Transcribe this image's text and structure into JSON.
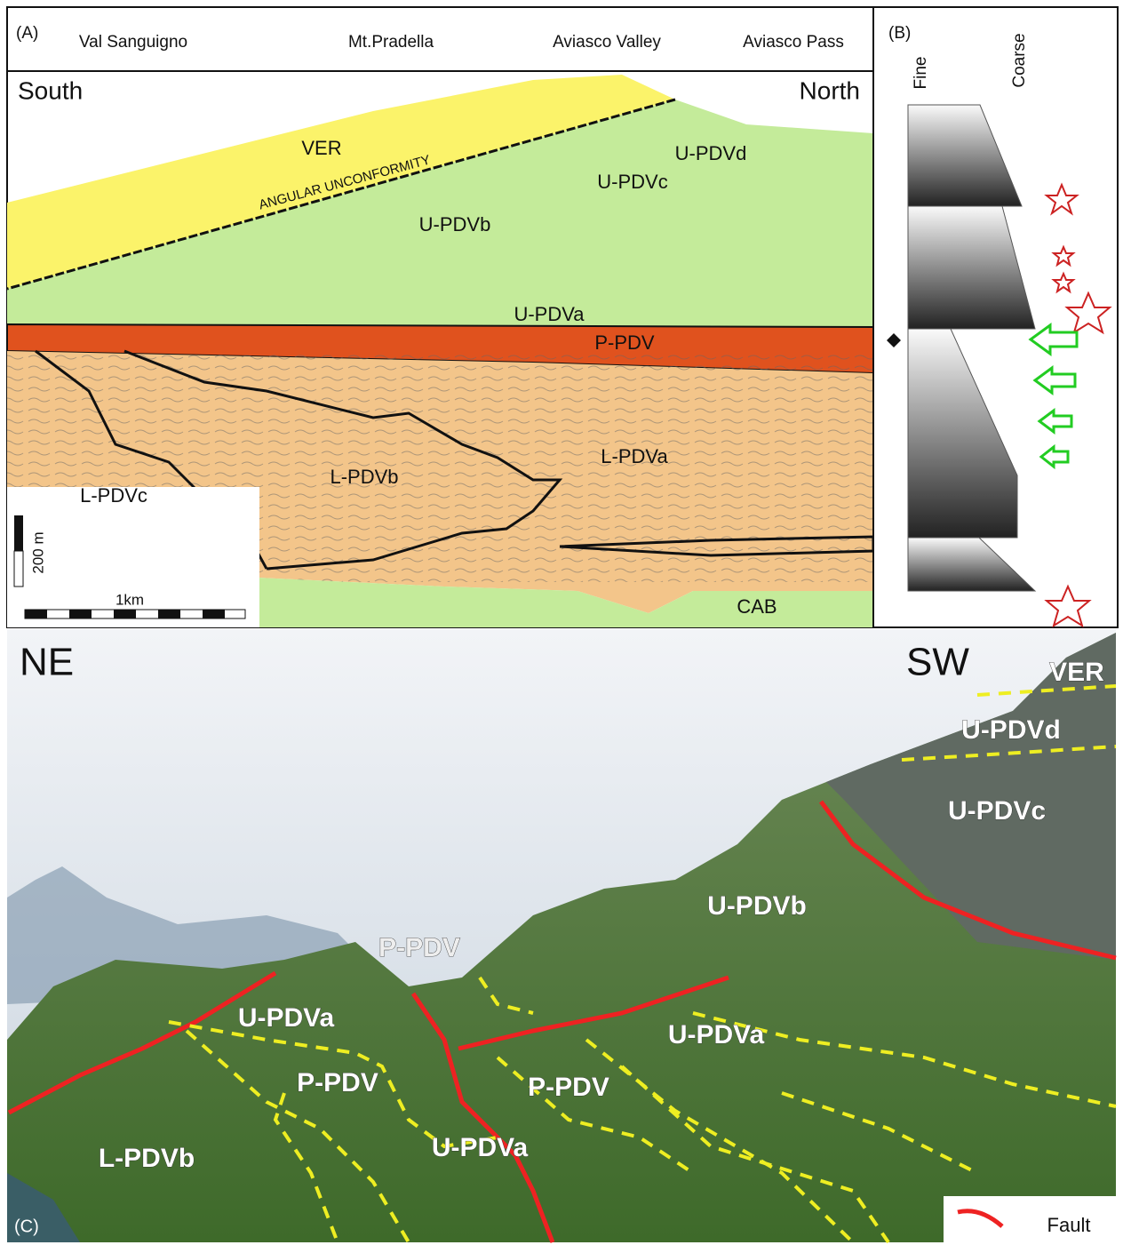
{
  "panel_a": {
    "label": "(A)",
    "localities": [
      "Val Sanguigno",
      "Mt.Pradella",
      "Aviasco Valley",
      "Aviasco Pass"
    ],
    "directions": [
      "South",
      "North"
    ],
    "units": [
      "VER",
      "U-PDVd",
      "U-PDVc",
      "U-PDVb",
      "U-PDVa",
      "P-PDV",
      "L-PDVa",
      "L-PDVb",
      "L-PDVc",
      "CAB"
    ],
    "annotation": "ANGULAR UNCONFORMITY",
    "scale": {
      "vertical": "200 m",
      "horizontal": "1km"
    }
  },
  "panel_b": {
    "label": "(B)",
    "grain_size": [
      "Fine",
      "Coarse"
    ]
  },
  "panel_c": {
    "label": "(C)",
    "directions": [
      "NE",
      "SW"
    ],
    "units": [
      "VER",
      "U-PDVd",
      "U-PDVc",
      "U-PDVb",
      "P-PDV",
      "U-PDVa",
      "U-PDVa",
      "P-PDV",
      "P-PDV",
      "U-PDVa",
      "L-PDVb"
    ],
    "legend": "Fault"
  }
}
